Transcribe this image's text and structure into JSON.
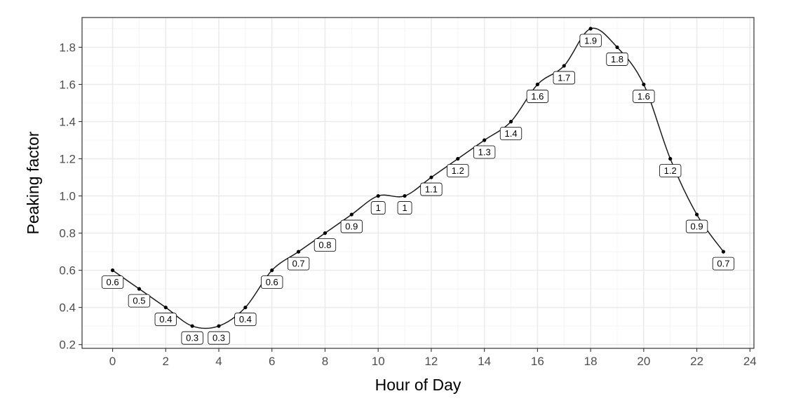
{
  "chart_data": {
    "type": "line",
    "title": "",
    "xlabel": "Hour of Day",
    "ylabel": "Peaking factor",
    "x": [
      0,
      1,
      2,
      3,
      4,
      5,
      6,
      7,
      8,
      9,
      10,
      11,
      12,
      13,
      14,
      15,
      16,
      17,
      18,
      19,
      20,
      21,
      22,
      23
    ],
    "y": [
      0.6,
      0.5,
      0.4,
      0.3,
      0.3,
      0.4,
      0.6,
      0.7,
      0.8,
      0.9,
      1.0,
      1.0,
      1.1,
      1.2,
      1.3,
      1.4,
      1.6,
      1.7,
      1.9,
      1.8,
      1.6,
      1.2,
      0.9,
      0.7
    ],
    "data_labels": [
      "0.6",
      "0.5",
      "0.4",
      "0.3",
      "0.3",
      "0.4",
      "0.6",
      "0.7",
      "0.8",
      "0.9",
      "1",
      "1",
      "1.1",
      "1.2",
      "1.3",
      "1.4",
      "1.6",
      "1.7",
      "1.9",
      "1.8",
      "1.6",
      "1.2",
      "0.9",
      "0.7"
    ],
    "xlim": [
      -1.15,
      24.15
    ],
    "ylim": [
      0.18,
      1.96
    ],
    "x_ticks": [
      0,
      2,
      4,
      6,
      8,
      10,
      12,
      14,
      16,
      18,
      20,
      22,
      24
    ],
    "x_tick_labels": [
      "0",
      "2",
      "4",
      "6",
      "8",
      "10",
      "12",
      "14",
      "16",
      "18",
      "20",
      "22",
      "24"
    ],
    "y_ticks": [
      0.2,
      0.4,
      0.6,
      0.8,
      1.0,
      1.2,
      1.4,
      1.6,
      1.8
    ],
    "y_tick_labels": [
      "0.2",
      "0.4",
      "0.6",
      "0.8",
      "1.0",
      "1.2",
      "1.4",
      "1.6",
      "1.8"
    ],
    "x_minor_ticks": [
      1,
      3,
      5,
      7,
      9,
      11,
      13,
      15,
      17,
      19,
      21,
      23
    ],
    "y_minor_ticks": [
      0.3,
      0.5,
      0.7,
      0.9,
      1.1,
      1.3,
      1.5,
      1.7,
      1.9
    ],
    "grid": true,
    "line_smoothing": "spline",
    "colors": {
      "line": "#1a1a1a",
      "point": "#000000",
      "grid_major": "#ebebeb",
      "grid_minor": "#f4f4f4",
      "panel_border": "#333333",
      "label_fill": "#ffffff",
      "label_border": "#000000"
    }
  }
}
